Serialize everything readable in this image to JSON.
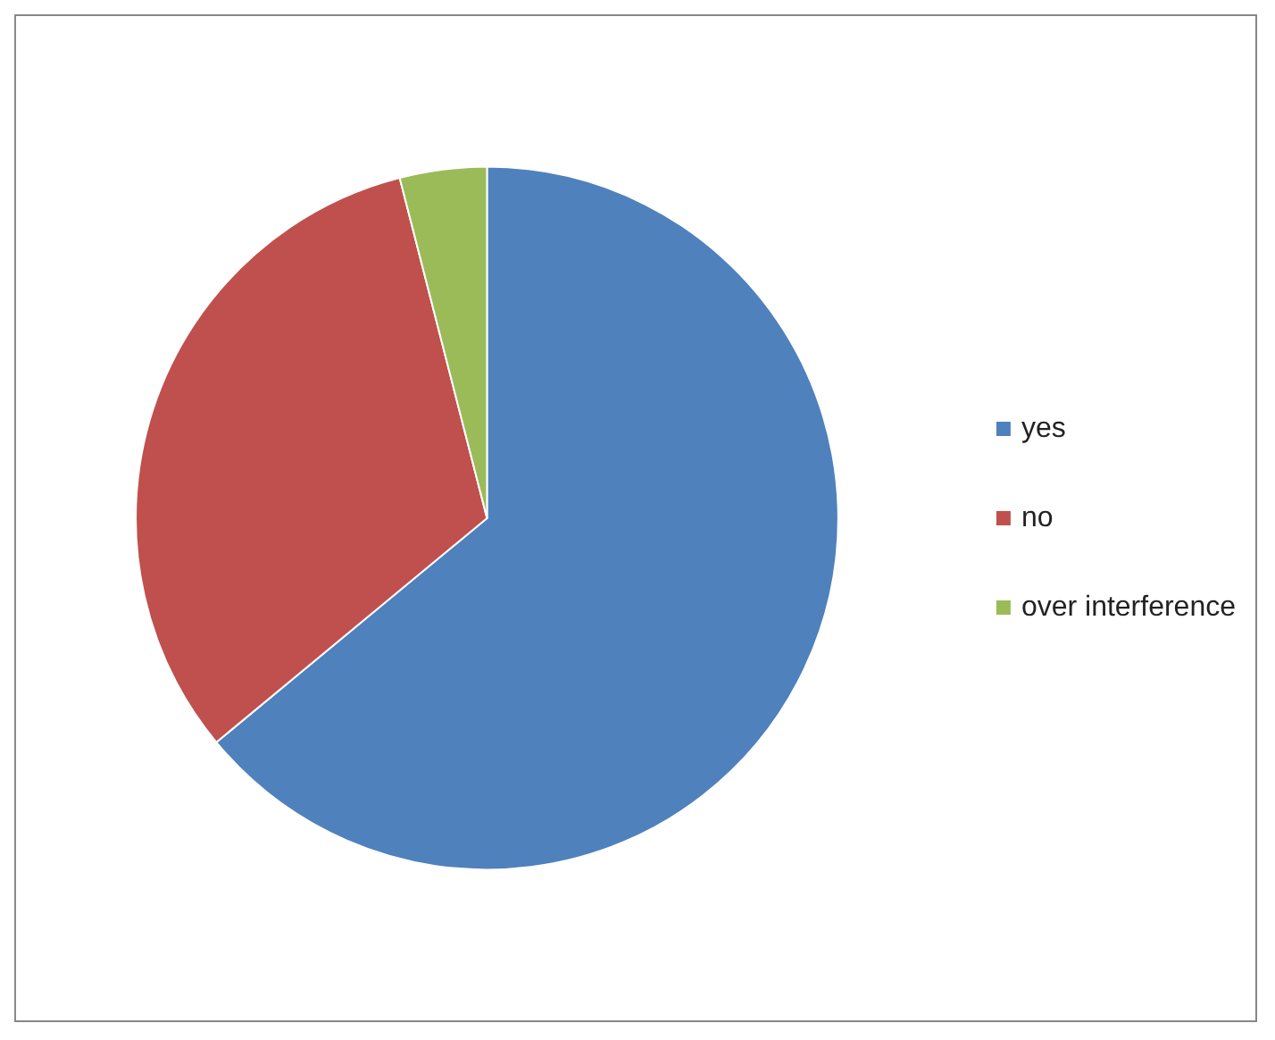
{
  "chart_data": {
    "type": "pie",
    "categories": [
      "yes",
      "no",
      "over interference"
    ],
    "values": [
      64,
      32,
      4
    ],
    "colors": [
      "#4f81bd",
      "#c0504d",
      "#9bbb59"
    ],
    "legend": "right"
  }
}
